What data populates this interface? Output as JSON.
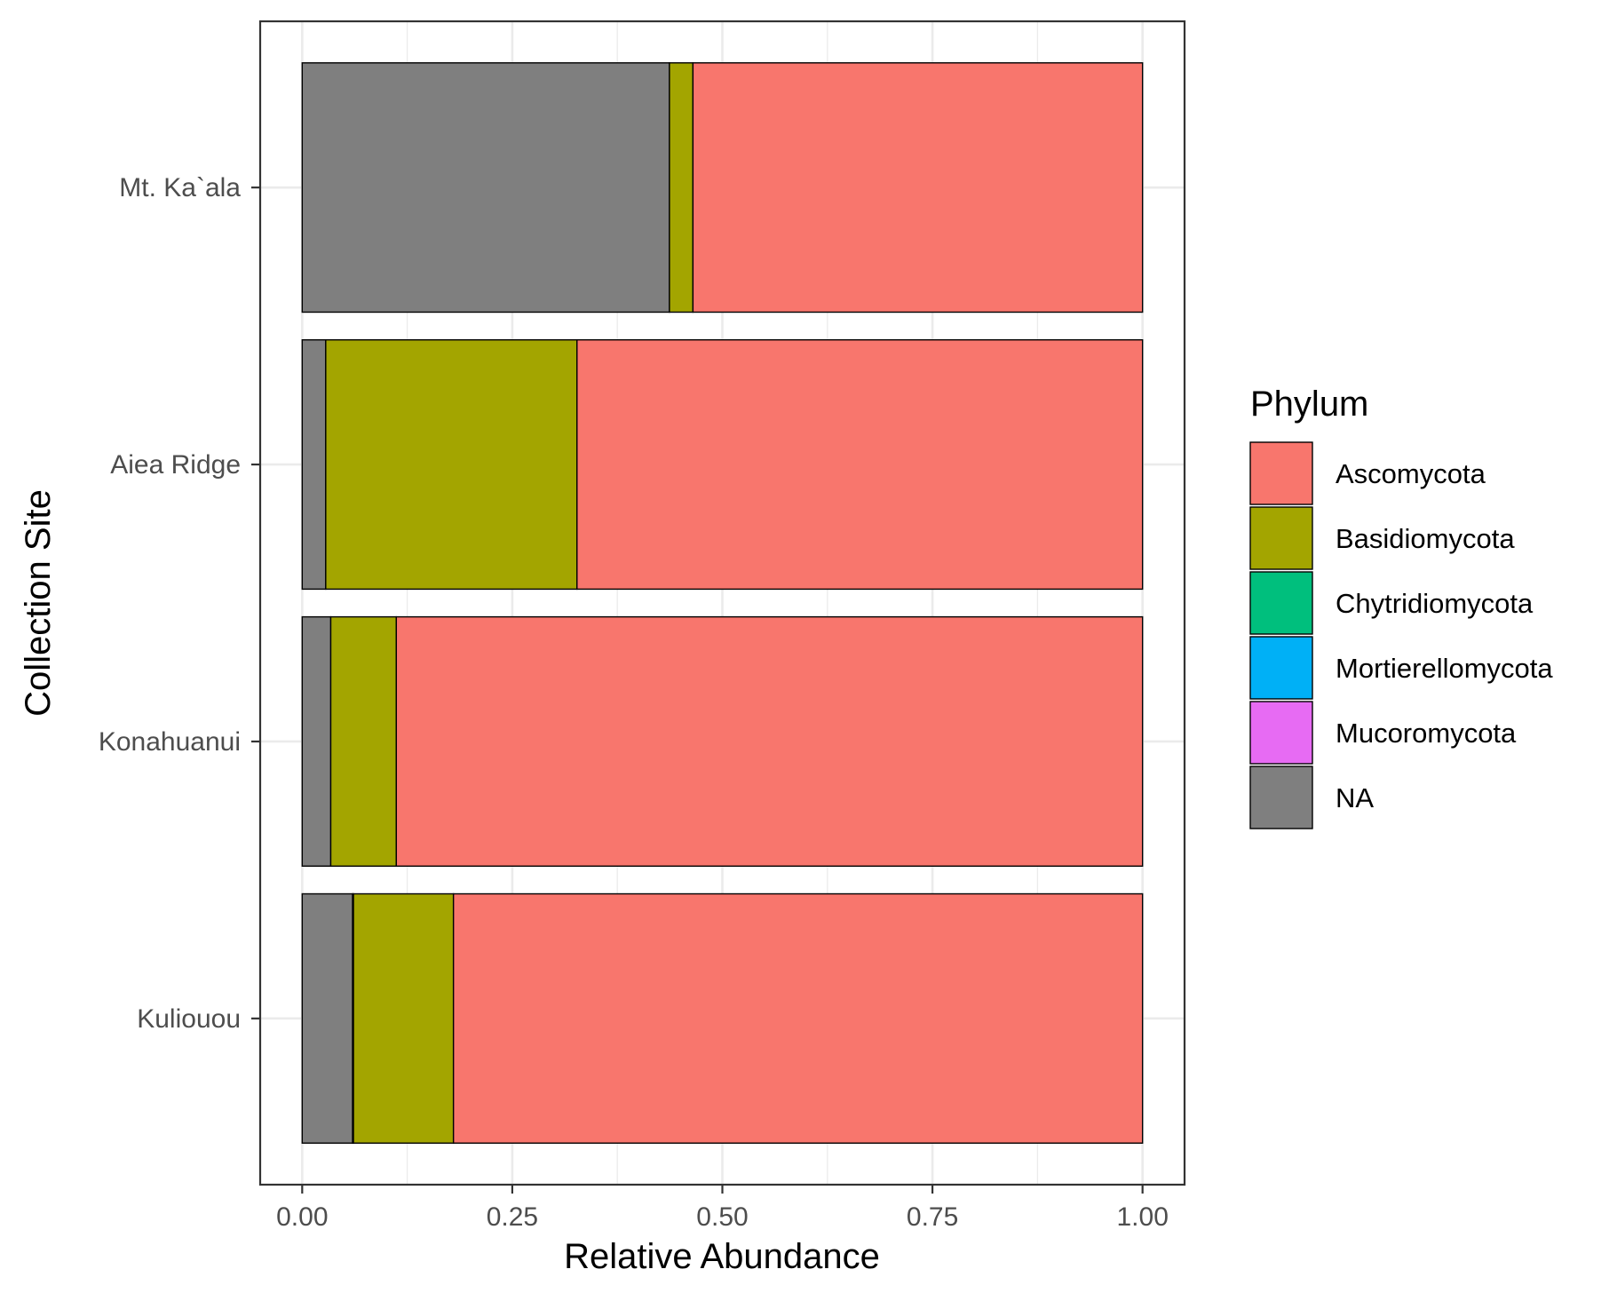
{
  "chart_data": {
    "type": "bar",
    "orientation": "horizontal",
    "stacked": true,
    "xlabel": "Relative Abundance",
    "ylabel": "Collection Site",
    "xlim": [
      -0.05,
      1.05
    ],
    "x_ticks": [
      "0.00",
      "0.25",
      "0.50",
      "0.75",
      "1.00"
    ],
    "x_tick_values": [
      0,
      0.25,
      0.5,
      0.75,
      1.0
    ],
    "categories": [
      "Mt. Ka`ala",
      "Aiea Ridge",
      "Konahuanui",
      "Kuliouou"
    ],
    "series": [
      {
        "name": "NA",
        "color": "#7f7f7f",
        "values": [
          0.437,
          0.028,
          0.034,
          0.06
        ]
      },
      {
        "name": "Mucoromycota",
        "color": "#e76bf3",
        "values": [
          0.0,
          0.0,
          0.0,
          0.001
        ]
      },
      {
        "name": "Mortierellomycota",
        "color": "#00b0f6",
        "values": [
          0.0,
          0.0,
          0.0,
          0.0
        ]
      },
      {
        "name": "Chytridiomycota",
        "color": "#00bf7d",
        "values": [
          0.0,
          0.0,
          0.0,
          0.0
        ]
      },
      {
        "name": "Basidiomycota",
        "color": "#a3a500",
        "values": [
          0.028,
          0.299,
          0.078,
          0.119
        ]
      },
      {
        "name": "Ascomycota",
        "color": "#f8766d",
        "values": [
          0.535,
          0.673,
          0.888,
          0.82
        ]
      }
    ],
    "legend": {
      "title": "Phylum",
      "position": "right",
      "items": [
        {
          "label": "Ascomycota",
          "color": "#f8766d"
        },
        {
          "label": "Basidiomycota",
          "color": "#a3a500"
        },
        {
          "label": "Chytridiomycota",
          "color": "#00bf7d"
        },
        {
          "label": "Mortierellomycota",
          "color": "#00b0f6"
        },
        {
          "label": "Mucoromycota",
          "color": "#e76bf3"
        },
        {
          "label": "NA",
          "color": "#7f7f7f"
        }
      ]
    },
    "grid": true,
    "theme": "bw"
  }
}
